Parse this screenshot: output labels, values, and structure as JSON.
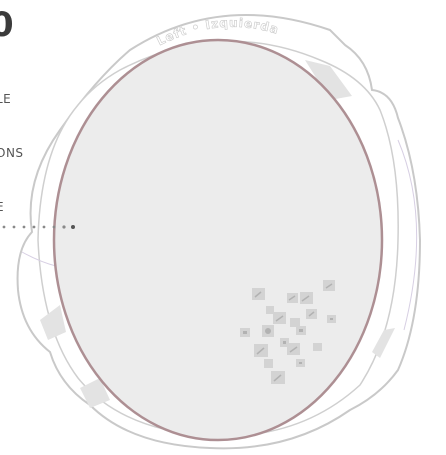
{
  "header": {
    "number": "0",
    "caption_lines": [
      "LE",
      "ONS",
      "E"
    ]
  },
  "eye": {
    "side_label": "Left • Izquierda"
  },
  "colors": {
    "background": "#ffffff",
    "outline": "#c9c9c9",
    "iris_fill": "#ececec",
    "iris_stroke": "#ad8f93",
    "frame_fill": "#ffffff",
    "tile": "#d3d3d3",
    "tile_mark": "#b2b2b2",
    "dots": "#8a8a8a"
  }
}
